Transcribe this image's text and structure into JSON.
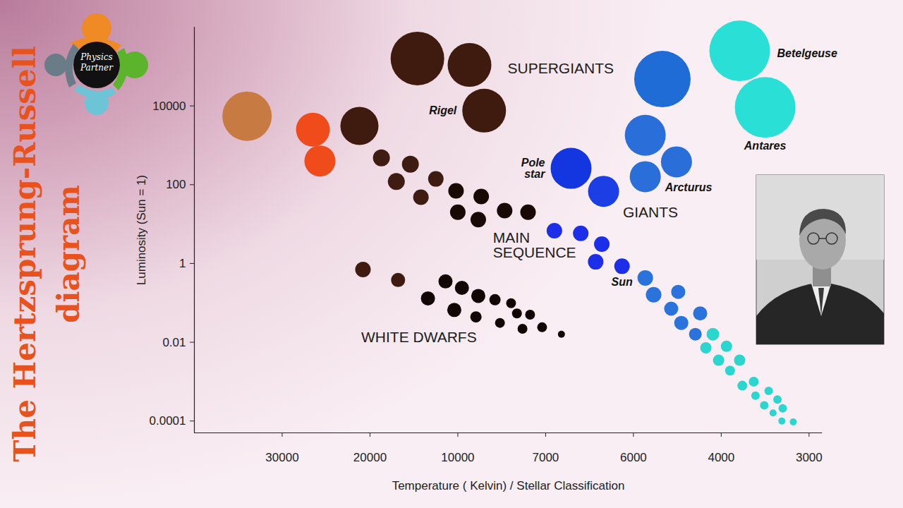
{
  "chart_data": {
    "type": "scatter",
    "title": "The Hertzsprung-Russell diagram",
    "logo": "Physics Partner",
    "x_label": "Temperature ( Kelvin) / Stellar Classification",
    "y_label": "Luminosity (Sun = 1)",
    "log": "y",
    "grid": false,
    "xlim": [
      40000,
      2850
    ],
    "xticks": [
      30000,
      20000,
      10000,
      7000,
      6000,
      4000,
      3000
    ],
    "ylim": [
      5e-05,
      1000000
    ],
    "yticks": [
      10000,
      100,
      1,
      0.01,
      0.0001
    ],
    "x": [
      34000,
      26500,
      25700,
      21200,
      14600,
      9600,
      9100,
      18700,
      15400,
      17000,
      12500,
      14200,
      10200,
      9200,
      10000,
      9300,
      8400,
      7600,
      6900,
      6600,
      6360,
      6430,
      6130,
      5730,
      5540,
      4980,
      5140,
      4480,
      4910,
      4590,
      4190,
      3940,
      4350,
      4060,
      3790,
      3900,
      3630,
      3760,
      3460,
      3610,
      3360,
      3510,
      3300,
      3410,
      3180,
      3310,
      6710,
      6340,
      5730,
      5020,
      5730,
      5340,
      3790,
      3500,
      20800,
      16800,
      11400,
      9860,
      13400,
      9300,
      8730,
      10400,
      8180,
      9380,
      7980,
      8560,
      7530,
      7790,
      7120,
      6820
    ],
    "values": [
      5500,
      2500,
      400,
      3100,
      160000,
      110000,
      7600,
      480,
      330,
      120,
      140,
      48,
      70,
      50,
      20,
      13,
      22,
      20,
      6.8,
      5.8,
      3.1,
      1.1,
      0.85,
      0.43,
      0.16,
      0.19,
      0.071,
      0.054,
      0.031,
      0.016,
      0.016,
      0.0079,
      0.0072,
      0.0035,
      0.0035,
      0.0019,
      0.001,
      0.00079,
      0.00058,
      0.00044,
      0.00035,
      0.00025,
      0.00021,
      0.00016,
      9.5e-05,
      0.0001,
      260,
      68,
      1800,
      380,
      160,
      48000,
      250000,
      9200,
      0.7,
      0.38,
      0.35,
      0.24,
      0.13,
      0.15,
      0.12,
      0.066,
      0.098,
      0.044,
      0.054,
      0.031,
      0.05,
      0.022,
      0.024,
      0.016
    ],
    "sizes": [
      35,
      24,
      22,
      27,
      38,
      31,
      31,
      12,
      12,
      12,
      11,
      11,
      11,
      11,
      11,
      11,
      11,
      11,
      11,
      11,
      11,
      11,
      11,
      11,
      11,
      10,
      10,
      10,
      10,
      9,
      9,
      8,
      8,
      8,
      8,
      7,
      7,
      7,
      6,
      6,
      6,
      6,
      6,
      5,
      5,
      5,
      29,
      22,
      29,
      22,
      22,
      40,
      43,
      43,
      11,
      10,
      10,
      10,
      10,
      10,
      8,
      10,
      7,
      8,
      7,
      7,
      7,
      7,
      7,
      5
    ],
    "colors": [
      "#c87a43",
      "#f04b1b",
      "#f04b1b",
      "#3e1a0f",
      "#3e1a0f",
      "#3e1a0f",
      "#3e1a0f",
      "#3e1c11",
      "#3e1c11",
      "#3e1c11",
      "#3e1c11",
      "#3e1c11",
      "#180905",
      "#180905",
      "#180905",
      "#180905",
      "#180905",
      "#180905",
      "#1c2ee8",
      "#1c2ee8",
      "#1c2ee8",
      "#1c2ee8",
      "#1c2ee8",
      "#2a72dc",
      "#2a72dc",
      "#2a72dc",
      "#2a72dc",
      "#2a72dc",
      "#2a72dc",
      "#2a72dc",
      "#2bd6cf",
      "#2bd6cf",
      "#2bd6cf",
      "#2bd6cf",
      "#2bd6cf",
      "#2bd6cf",
      "#2bd6cf",
      "#2bd6cf",
      "#2bd6cf",
      "#2bd6cf",
      "#2bd6cf",
      "#2bd6cf",
      "#2bd6cf",
      "#2bd6cf",
      "#2bd6cf",
      "#2bd6cf",
      "#1436e0",
      "#1b3fe4",
      "#2a6fd9",
      "#2a6fd9",
      "#2a6fd9",
      "#1f6cd7",
      "#2ae0d6",
      "#2ae0d6",
      "#3e1a0f",
      "#3e1a0f",
      "#120604",
      "#120604",
      "#120604",
      "#120604",
      "#120604",
      "#120604",
      "#120604",
      "#120604",
      "#120604",
      "#120604",
      "#120604",
      "#120604",
      "#120604",
      "#120604"
    ],
    "labels": [
      null,
      null,
      null,
      null,
      null,
      null,
      "Rigel",
      null,
      null,
      null,
      null,
      null,
      null,
      null,
      null,
      null,
      null,
      null,
      null,
      null,
      null,
      null,
      "Sun",
      null,
      null,
      null,
      null,
      null,
      null,
      null,
      null,
      null,
      null,
      null,
      null,
      null,
      null,
      null,
      null,
      null,
      null,
      null,
      null,
      null,
      null,
      null,
      "Pole star",
      null,
      null,
      null,
      "Arcturus",
      null,
      "Betelgeuse",
      "Antares",
      null,
      null,
      null,
      null,
      null,
      null,
      null,
      null,
      null,
      null,
      null,
      null,
      null,
      null,
      null,
      null
    ],
    "annotations": [
      {
        "text": "SUPERGIANTS",
        "x": 8300,
        "y": 90000
      },
      {
        "text": "GIANTS",
        "x": 6120,
        "y": 20
      },
      {
        "text": "MAIN SEQUENCE",
        "x": 8800,
        "y": 2.9
      },
      {
        "text": "WHITE DWARFS",
        "x": 21000,
        "y": 0.013
      }
    ]
  }
}
